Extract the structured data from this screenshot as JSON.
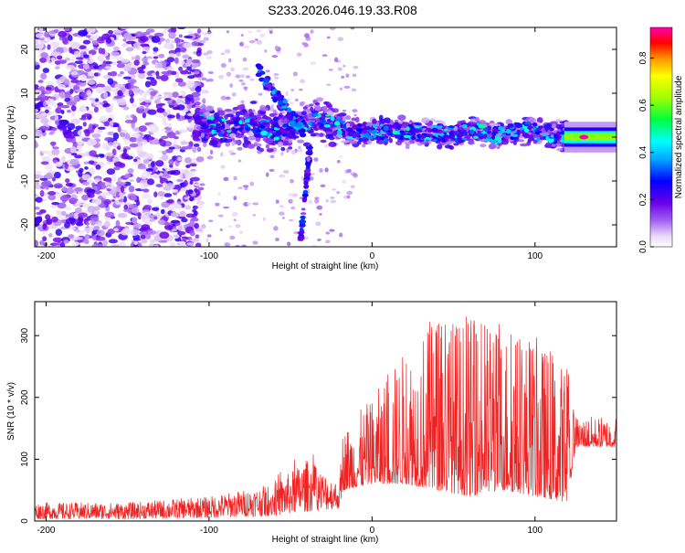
{
  "page_title": "S233.2026.046.19.33.R08",
  "colors": {
    "snr_line": "#ee2222",
    "axis": "#000000"
  },
  "chart_data": [
    {
      "type": "heatmap",
      "title": "S233.2026.046.19.33.R08",
      "xlabel": "Height of straight line (km)",
      "ylabel": "Frequency (Hz)",
      "xlim": [
        -207,
        150
      ],
      "ylim": [
        -25,
        25
      ],
      "xticks": [
        -200,
        -100,
        0,
        100
      ],
      "yticks": [
        -20,
        -10,
        0,
        10,
        20
      ],
      "xtick_labels": [
        "-200",
        "-100",
        "0",
        "100"
      ],
      "ytick_labels": [
        "-20",
        "-10",
        "0",
        "10",
        "20"
      ],
      "colorbar": {
        "label": "Normalized spectral amplitude",
        "range": [
          0.0,
          0.93
        ],
        "ticks": [
          0.0,
          0.2,
          0.4,
          0.6,
          0.8
        ],
        "tick_labels": [
          "0.0",
          "0.2",
          "0.4",
          "0.6",
          "0.8"
        ]
      },
      "ridge": {
        "description": "dominant frequency ridge",
        "points": [
          [
            -105,
            4
          ],
          [
            -95,
            2
          ],
          [
            -85,
            2.5
          ],
          [
            -75,
            3
          ],
          [
            -65,
            2
          ],
          [
            -55,
            1
          ],
          [
            -45,
            3
          ],
          [
            -35,
            4
          ],
          [
            -25,
            3
          ],
          [
            -15,
            1.5
          ],
          [
            -5,
            1
          ],
          [
            5,
            1
          ],
          [
            15,
            1.5
          ],
          [
            25,
            1
          ],
          [
            35,
            1
          ],
          [
            45,
            0.5
          ],
          [
            55,
            1
          ],
          [
            65,
            1.5
          ],
          [
            75,
            0.5
          ],
          [
            85,
            1
          ],
          [
            95,
            1.5
          ],
          [
            105,
            1
          ],
          [
            115,
            0.5
          ],
          [
            125,
            0
          ],
          [
            135,
            0
          ],
          [
            150,
            0
          ]
        ],
        "peak_amplitude": 0.93,
        "peak_location_km": 130
      },
      "noise_region_km": [
        -207,
        -105
      ]
    },
    {
      "type": "line",
      "xlabel": "Height of straight line (km)",
      "ylabel": "SNR (10 * v/v)",
      "xlim": [
        -207,
        150
      ],
      "ylim": [
        0,
        355
      ],
      "xticks": [
        -200,
        -100,
        0,
        100
      ],
      "yticks": [
        0,
        100,
        200,
        300
      ],
      "xtick_labels": [
        "-200",
        "-100",
        "0",
        "100"
      ],
      "ytick_labels": [
        "0",
        "100",
        "200",
        "300"
      ],
      "series": [
        {
          "name": "SNR",
          "envelope_x": [
            -207,
            -150,
            -100,
            -60,
            -40,
            -20,
            -18,
            0,
            20,
            40,
            60,
            80,
            100,
            120,
            125,
            150
          ],
          "envelope_lo": [
            3,
            3,
            5,
            8,
            15,
            20,
            50,
            60,
            60,
            50,
            40,
            50,
            40,
            30,
            120,
            120
          ],
          "envelope_hi": [
            30,
            30,
            40,
            60,
            100,
            60,
            150,
            200,
            280,
            340,
            330,
            320,
            300,
            250,
            170,
            170
          ]
        }
      ]
    }
  ]
}
